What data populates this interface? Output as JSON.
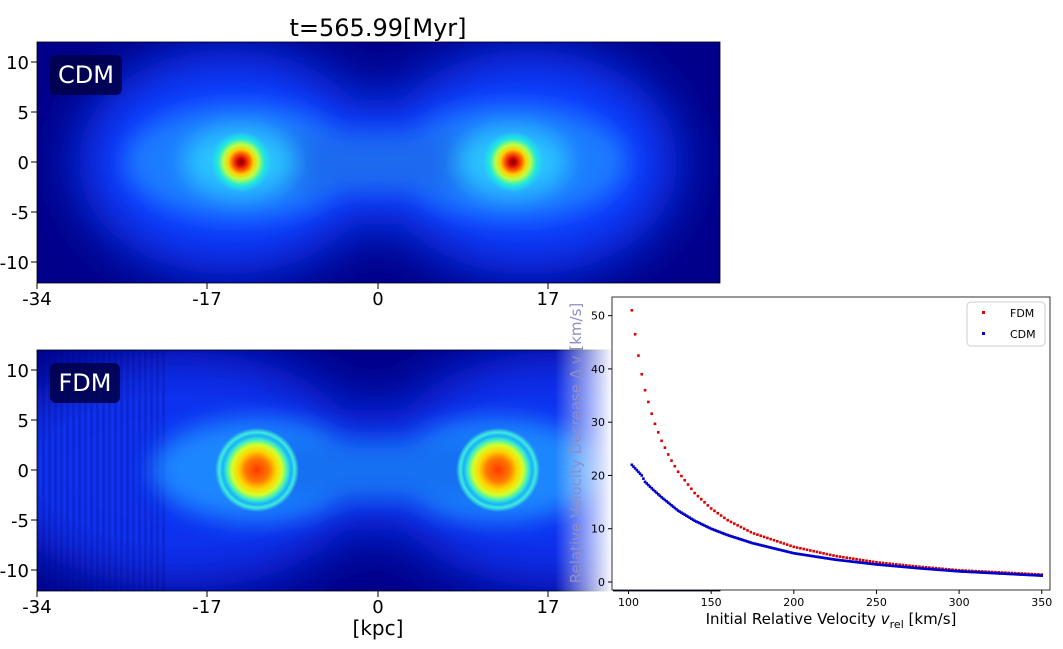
{
  "figure": {
    "title": "t=565.99[Myr]",
    "xlabel": "[kpc]",
    "colormap": "jet"
  },
  "panels": [
    {
      "label": "CDM",
      "core": "cusp",
      "x_ticks": [
        "-34",
        "-17",
        "0",
        "17"
      ],
      "y_ticks": [
        "10",
        "5",
        "0",
        "-5",
        "-10"
      ]
    },
    {
      "label": "FDM",
      "core": "soliton",
      "x_ticks": [
        "-34",
        "-17",
        "0",
        "17"
      ],
      "y_ticks": [
        "10",
        "5",
        "0",
        "-5",
        "-10"
      ]
    }
  ],
  "chart_data": [
    {
      "type": "heatmap",
      "title": "t=565.99[Myr]",
      "label": "CDM",
      "xlabel": "[kpc]",
      "xlim": [
        -34,
        34
      ],
      "ylim": [
        -12,
        12
      ],
      "x_ticks": [
        -34,
        -17,
        0,
        17
      ],
      "y_ticks": [
        10,
        5,
        0,
        -5,
        -10
      ],
      "peaks": [
        {
          "x": -13.5,
          "y": 0
        },
        {
          "x": 13.5,
          "y": 0
        }
      ]
    },
    {
      "type": "heatmap",
      "label": "FDM",
      "xlabel": "[kpc]",
      "xlim": [
        -34,
        34
      ],
      "ylim": [
        -12,
        12
      ],
      "x_ticks": [
        -34,
        -17,
        0,
        17
      ],
      "y_ticks": [
        10,
        5,
        0,
        -5,
        -10
      ],
      "peaks": [
        {
          "x": -12,
          "y": 0
        },
        {
          "x": 12,
          "y": 0
        }
      ]
    },
    {
      "type": "scatter",
      "xlabel": "Initial Relative Velocity v_rel [km/s]",
      "ylabel": "Relative Velocity Decrease Δ v [km/s]",
      "xlim": [
        90,
        355
      ],
      "ylim": [
        -1.5,
        53.5
      ],
      "x_ticks": [
        100,
        150,
        200,
        250,
        300,
        350
      ],
      "y_ticks": [
        0,
        10,
        20,
        30,
        40,
        50
      ],
      "legend_position": "top-right",
      "series": [
        {
          "name": "FDM",
          "color": "#dd0000",
          "x": [
            102,
            104,
            106,
            108,
            110,
            115,
            120,
            125,
            130,
            140,
            150,
            160,
            175,
            200,
            225,
            250,
            275,
            300,
            325,
            350
          ],
          "y": [
            51,
            46.5,
            42.5,
            39,
            36,
            30.5,
            26.5,
            23.3,
            20.7,
            16.7,
            13.8,
            11.6,
            9.2,
            6.6,
            4.9,
            3.7,
            2.9,
            2.2,
            1.8,
            1.4
          ]
        },
        {
          "name": "CDM",
          "color": "#0000cc",
          "x": [
            102,
            105,
            108,
            110,
            115,
            120,
            130,
            140,
            150,
            160,
            175,
            200,
            225,
            250,
            275,
            300,
            325,
            350
          ],
          "y": [
            22,
            21,
            20,
            18.8,
            17.3,
            15.9,
            13.4,
            11.5,
            10,
            8.8,
            7.3,
            5.4,
            4.2,
            3.3,
            2.6,
            2.0,
            1.6,
            1.2
          ]
        }
      ]
    }
  ],
  "scatter_panel": {
    "xlabel": "Initial Relative Velocity",
    "xlabel_symbol": "v",
    "xlabel_sub": "rel",
    "xlabel_units": "[km/s]",
    "ylabel": "Relative Velocity Decrease Δ v [km/s]",
    "legend": [
      "FDM",
      "CDM"
    ]
  }
}
